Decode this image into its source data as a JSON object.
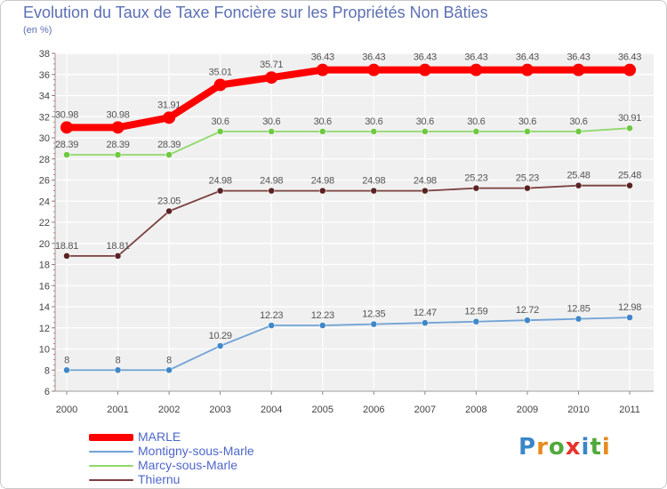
{
  "title": "Evolution du Taux de Taxe Foncière sur les Propriétés Non Bâties",
  "unit_label": "(en %)",
  "logo": {
    "text": "Proxiti",
    "letters": [
      "P",
      "r",
      "o",
      "x",
      "i",
      "t",
      "i"
    ],
    "colors": [
      "#3a86c8",
      "#e88a1e",
      "#52a83d",
      "#e8322a",
      "#3a86c8",
      "#52a83d",
      "#e88a1e"
    ]
  },
  "chart_data": {
    "type": "line",
    "title": "Evolution du Taux de Taxe Foncière sur les Propriétés Non Bâties",
    "ylabel": "(en %)",
    "xlabel": "",
    "ylim": [
      6,
      38
    ],
    "yticks": [
      6,
      8,
      10,
      12,
      14,
      16,
      18,
      20,
      22,
      24,
      26,
      28,
      30,
      32,
      34,
      36,
      38
    ],
    "grid": true,
    "x": [
      "2000",
      "2001",
      "2002",
      "2003",
      "2004",
      "2005",
      "2006",
      "2007",
      "2008",
      "2009",
      "2010",
      "2011"
    ],
    "series": [
      {
        "name": "MARLE",
        "color": "#ff0000",
        "emphasis": true,
        "values": [
          30.98,
          30.98,
          31.91,
          35.01,
          35.71,
          36.43,
          36.43,
          36.43,
          36.43,
          36.43,
          36.43,
          36.43
        ],
        "labels": [
          "30.98",
          "30.98",
          "31.91",
          "35.01",
          "35.71",
          "36.43",
          "36.43",
          "36.43",
          "36.43",
          "36.43",
          "36.43",
          "36.43"
        ]
      },
      {
        "name": "Montigny-sous-Marle",
        "color": "#6fa2d6",
        "point_color": "#3f87c9",
        "values": [
          8,
          8,
          8,
          10.29,
          12.23,
          12.23,
          12.35,
          12.47,
          12.59,
          12.72,
          12.85,
          12.98
        ],
        "labels": [
          "8",
          "8",
          "8",
          "10.29",
          "12.23",
          "12.23",
          "12.35",
          "12.47",
          "12.59",
          "12.72",
          "12.85",
          "12.98"
        ]
      },
      {
        "name": "Marcy-sous-Marle",
        "color": "#8fd86a",
        "point_color": "#6dc93f",
        "values": [
          28.39,
          28.39,
          28.39,
          30.6,
          30.6,
          30.6,
          30.6,
          30.6,
          30.6,
          30.6,
          30.6,
          30.91
        ],
        "labels": [
          "28.39",
          "28.39",
          "28.39",
          "30.6",
          "30.6",
          "30.6",
          "30.6",
          "30.6",
          "30.6",
          "30.6",
          "30.6",
          "30.91"
        ]
      },
      {
        "name": "Thiernu",
        "color": "#7b3f3f",
        "point_color": "#5a2222",
        "values": [
          18.81,
          18.81,
          23.05,
          24.98,
          24.98,
          24.98,
          24.98,
          24.98,
          25.23,
          25.23,
          25.48,
          25.48
        ],
        "labels": [
          "18.81",
          "18.81",
          "23.05",
          "24.98",
          "24.98",
          "24.98",
          "24.98",
          "24.98",
          "25.23",
          "25.23",
          "25.48",
          "25.48"
        ]
      }
    ]
  }
}
